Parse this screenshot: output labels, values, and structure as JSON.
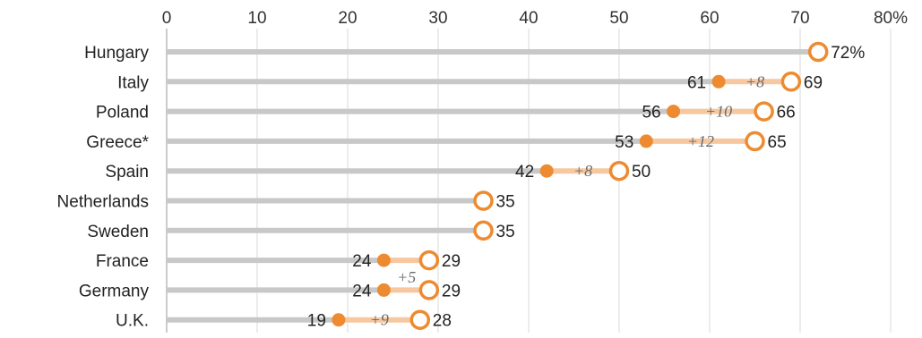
{
  "chart_data": {
    "type": "dot-range",
    "xlim": [
      0,
      80
    ],
    "x_ticks": [
      "0",
      "10",
      "20",
      "30",
      "40",
      "50",
      "60",
      "70",
      "80%"
    ],
    "grid": true,
    "colors": {
      "accent": "#ee8a2f",
      "accent_light": "#f7c79f",
      "bar": "#c8c8c8",
      "grid": "#d9d9d9"
    },
    "rows": [
      {
        "country": "Hungary",
        "start": null,
        "end": 72,
        "end_label": "72%",
        "diff": null
      },
      {
        "country": "Italy",
        "start": 61,
        "end": 69,
        "end_label": "69",
        "diff": "+8"
      },
      {
        "country": "Poland",
        "start": 56,
        "end": 66,
        "end_label": "66",
        "diff": "+10"
      },
      {
        "country": "Greece*",
        "start": 53,
        "end": 65,
        "end_label": "65",
        "diff": "+12"
      },
      {
        "country": "Spain",
        "start": 42,
        "end": 50,
        "end_label": "50",
        "diff": "+8"
      },
      {
        "country": "Netherlands",
        "start": null,
        "end": 35,
        "end_label": "35",
        "diff": null
      },
      {
        "country": "Sweden",
        "start": null,
        "end": 35,
        "end_label": "35",
        "diff": null
      },
      {
        "country": "France",
        "start": 24,
        "end": 29,
        "end_label": "29",
        "diff": "+5",
        "diff_below": true
      },
      {
        "country": "Germany",
        "start": 24,
        "end": 29,
        "end_label": "29",
        "diff": null
      },
      {
        "country": "U.K.",
        "start": 19,
        "end": 28,
        "end_label": "28",
        "diff": "+9"
      }
    ]
  }
}
